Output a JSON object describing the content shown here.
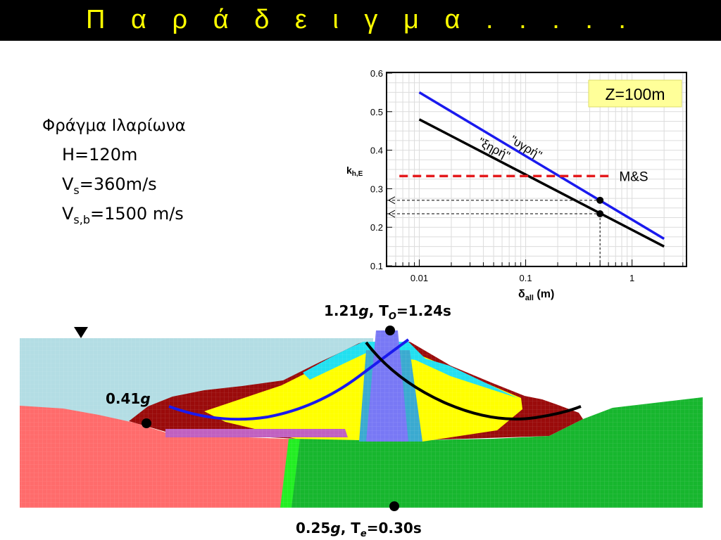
{
  "slide": {
    "title": "Π α ρ ά δ ε ι γ μ α . . . . ."
  },
  "info": {
    "dam_name": "Φράγμα Ιλαρίωνα",
    "H": "H=120m",
    "vs_prefix": "V",
    "vs_sub": "s",
    "vs_value": "=360m/s",
    "vsb_prefix": "V",
    "vsb_sub": "s,b",
    "vsb_value": "=1500 m/s"
  },
  "annotations": {
    "crest_prefix": "1.21",
    "crest_g": "g",
    "crest_mid": ", T",
    "crest_sub": "O",
    "crest_value": "=1.24s",
    "slope_value": "0.41",
    "slope_g": "g",
    "base_prefix": "0.25",
    "base_g": "g",
    "base_mid": ", T",
    "base_sub": "e",
    "base_value": "=0.30s"
  },
  "chart_data": {
    "type": "line",
    "xscale": "log",
    "xlim": [
      0.005,
      3.2
    ],
    "ylim": [
      0.1,
      0.6
    ],
    "x_ticks": [
      "0.01",
      "0.1",
      "1"
    ],
    "y_ticks": [
      "0.1",
      "0.2",
      "0.3",
      "0.4",
      "0.5",
      "0.6"
    ],
    "xlabel_main": "δ",
    "xlabel_sub": "all",
    "xlabel_unit": " (m)",
    "ylabel_main": "k",
    "ylabel_sub": "h,E",
    "grid": true,
    "box_label": "Z=100m",
    "series": [
      {
        "name": "\"υγρή\"",
        "color": "#1a1aee",
        "x": [
          0.01,
          2.0
        ],
        "y": [
          0.55,
          0.17
        ]
      },
      {
        "name": "\"ξηρή\"",
        "color": "#000000",
        "x": [
          0.01,
          2.0
        ],
        "y": [
          0.48,
          0.15
        ]
      },
      {
        "name": "M&S",
        "color": "#e41a1c",
        "style": "dashed",
        "x": [
          0.0065,
          0.65
        ],
        "y": [
          0.333,
          0.333
        ]
      }
    ],
    "points": [
      {
        "x": 0.5,
        "y": 0.27
      },
      {
        "x": 0.5,
        "y": 0.235
      }
    ],
    "guides": {
      "x_drop": 0.5,
      "y_levels": [
        0.27,
        0.235
      ]
    }
  }
}
